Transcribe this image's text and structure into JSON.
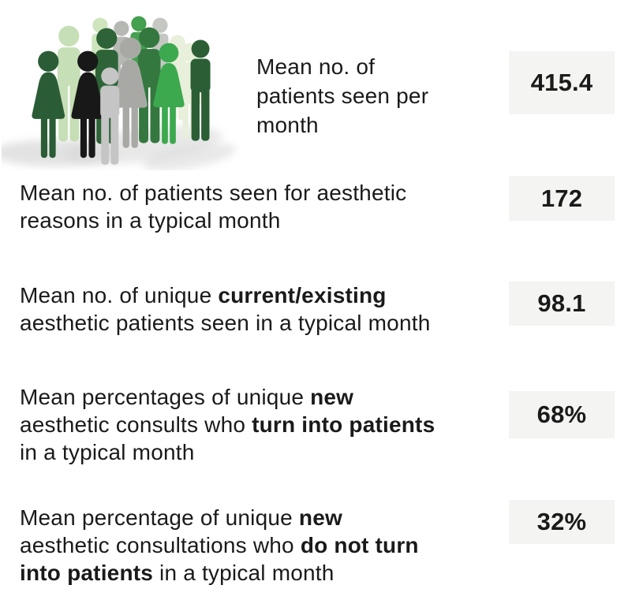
{
  "chart_data": {
    "type": "table",
    "title": "",
    "rows": [
      {
        "label": "Mean no. of patients seen per month",
        "value": 415.4
      },
      {
        "label": "Mean no. of patients seen for aesthetic reasons in a typical month",
        "value": 172
      },
      {
        "label": "Mean no. of unique current/existing aesthetic patients seen in a typical month",
        "value": 98.1
      },
      {
        "label": "Mean percentages of unique new aesthetic consults who turn into patients in a typical month",
        "value": "68%"
      },
      {
        "label": "Mean percentage of unique new aesthetic consultations who do not turn into patients in a typical month",
        "value": "32%"
      }
    ]
  },
  "rows": [
    {
      "value": "415.4",
      "lines": [
        [
          {
            "t": "Mean no. of"
          }
        ],
        [
          {
            "t": "patients seen per"
          }
        ],
        [
          {
            "t": "month"
          }
        ]
      ]
    },
    {
      "value": "172",
      "lines": [
        [
          {
            "t": "Mean no. of patients seen for aesthetic"
          }
        ],
        [
          {
            "t": "reasons in a typical month"
          }
        ]
      ]
    },
    {
      "value": "98.1",
      "lines": [
        [
          {
            "t": "Mean no. of unique "
          },
          {
            "t": "current/existing",
            "b": true
          }
        ],
        [
          {
            "t": "aesthetic patients seen in a typical month"
          }
        ]
      ]
    },
    {
      "value": "68%",
      "lines": [
        [
          {
            "t": "Mean percentages of unique "
          },
          {
            "t": "new",
            "b": true
          }
        ],
        [
          {
            "t": "aesthetic consults who "
          },
          {
            "t": "turn into patients",
            "b": true
          }
        ],
        [
          {
            "t": "in a typical month"
          }
        ]
      ]
    },
    {
      "value": "32%",
      "lines": [
        [
          {
            "t": "Mean percentage of unique "
          },
          {
            "t": "new",
            "b": true
          }
        ],
        [
          {
            "t": "aesthetic consultations who "
          },
          {
            "t": "do not turn",
            "b": true
          }
        ],
        [
          {
            "t": "into patients",
            "b": true
          },
          {
            "t": " in a typical month"
          }
        ]
      ]
    }
  ],
  "palette": {
    "box_bg": "#f4f4f2",
    "text": "#1a1a1a",
    "dark_green": "#2b5e34",
    "dark_green2": "#2e6337",
    "forest_female": "#2a5d36",
    "medium_green": "#43a04f",
    "med_dark_green": "#34783f",
    "bright_green": "#3ca94e",
    "light_green": "#c6dfb6",
    "light_green_head": "#cfe5bd",
    "pale_green": "#e8efda",
    "black_figure": "#181818",
    "gray_figure": "#a8a9a5",
    "gray_head_1": "#b6b9b3",
    "gray_head_2": "#c5c7c3",
    "light_gray_figure": "#c5c5c5",
    "shadow": "#d7d7d7"
  }
}
